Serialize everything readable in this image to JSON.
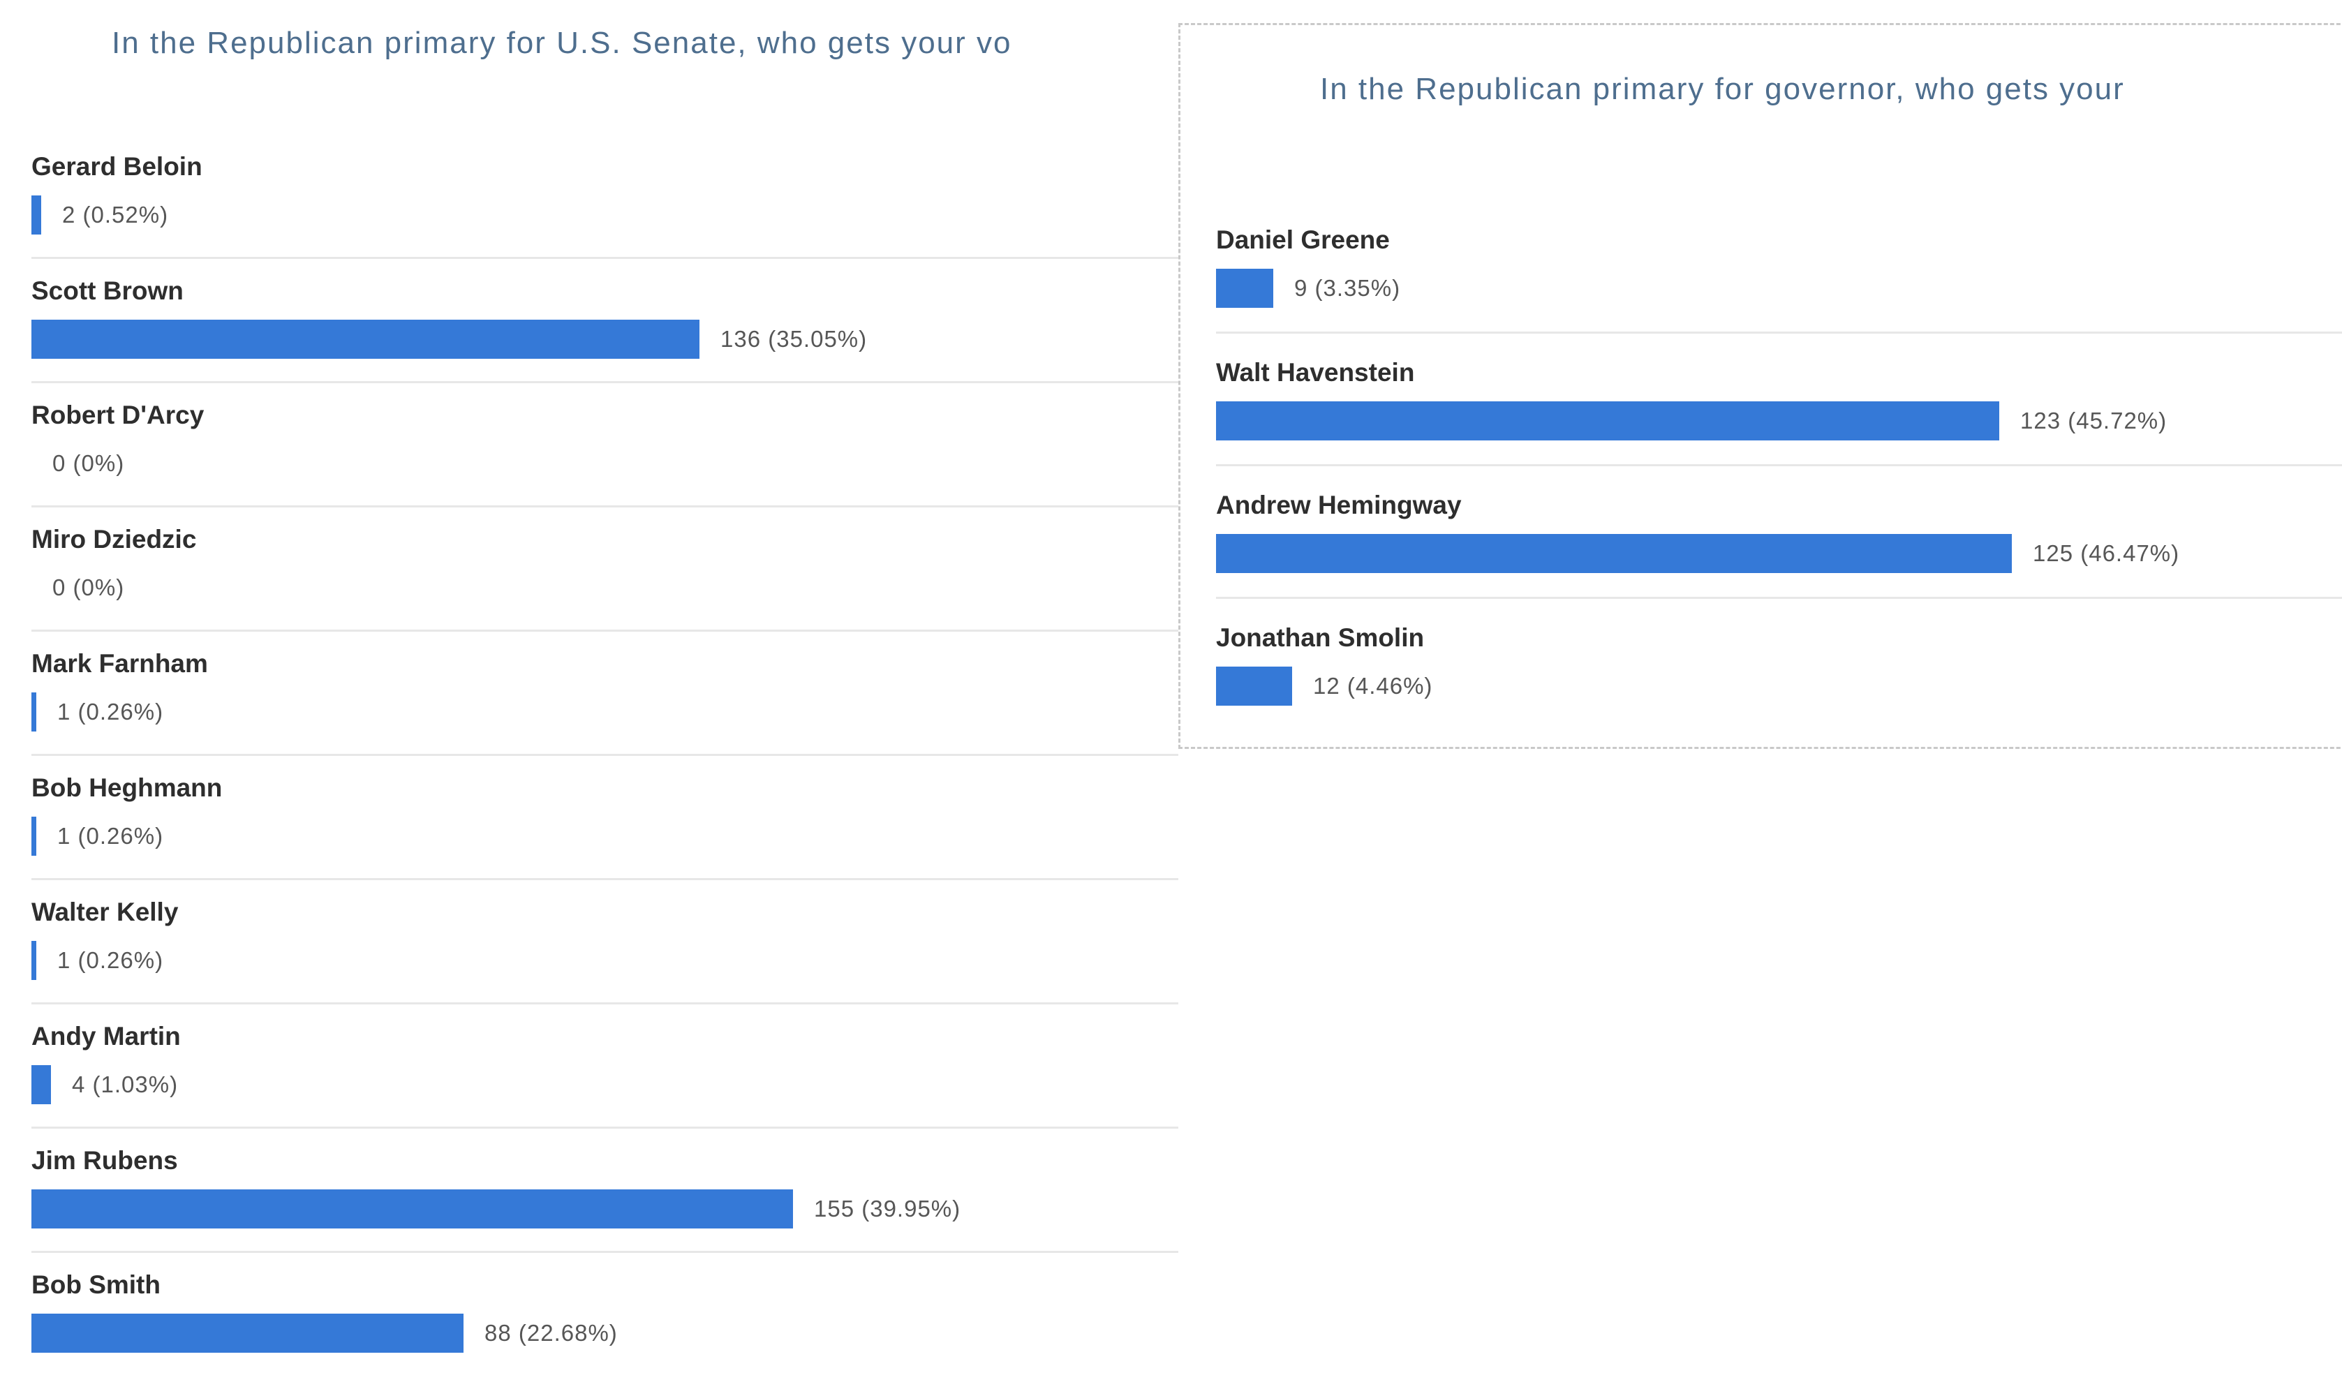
{
  "colors": {
    "bar": "#3579d7",
    "title_text": "#4e6e8e",
    "candidate_name_text": "#2e2e2e",
    "value_text": "#565656",
    "row_separator": "#e7e7e7",
    "panel_dashed_border": "#c9c9c9",
    "background": "#ffffff"
  },
  "chart_data": [
    {
      "type": "bar",
      "orientation": "horizontal",
      "title": "In the Republican primary for U.S. Senate, who gets your vo",
      "title_truncated": true,
      "categories": [
        "Gerard Beloin",
        "Scott Brown",
        "Robert D'Arcy",
        "Miro Dziedzic",
        "Mark Farnham",
        "Bob Heghmann",
        "Walter Kelly",
        "Andy Martin",
        "Jim Rubens",
        "Bob Smith"
      ],
      "values": [
        2,
        136,
        0,
        0,
        1,
        1,
        1,
        4,
        155,
        88
      ],
      "percents": [
        0.52,
        35.05,
        0,
        0,
        0.26,
        0.26,
        0.26,
        1.03,
        39.95,
        22.68
      ],
      "data_labels": [
        "2 (0.52%)",
        "136 (35.05%)",
        "0 (0%)",
        "0 (0%)",
        "1 (0.26%)",
        "1 (0.26%)",
        "1 (0.26%)",
        "4 (1.03%)",
        "155 (39.95%)",
        "88 (22.68%)"
      ],
      "xlim": [
        0,
        155
      ],
      "grid": false,
      "legend": false,
      "value_labels_shown": true,
      "row_separators": true
    },
    {
      "type": "bar",
      "orientation": "horizontal",
      "title": "In the Republican primary for governor, who gets your",
      "title_truncated": true,
      "categories": [
        "Daniel Greene",
        "Walt Havenstein",
        "Andrew Hemingway",
        "Jonathan Smolin"
      ],
      "values": [
        9,
        123,
        125,
        12
      ],
      "percents": [
        3.35,
        45.72,
        46.47,
        4.46
      ],
      "data_labels": [
        "9 (3.35%)",
        "123 (45.72%)",
        "125 (46.47%)",
        "12 (4.46%)"
      ],
      "xlim": [
        0,
        125
      ],
      "grid": false,
      "legend": false,
      "value_labels_shown": true,
      "row_separators": true,
      "panel_border": "dashed"
    }
  ]
}
